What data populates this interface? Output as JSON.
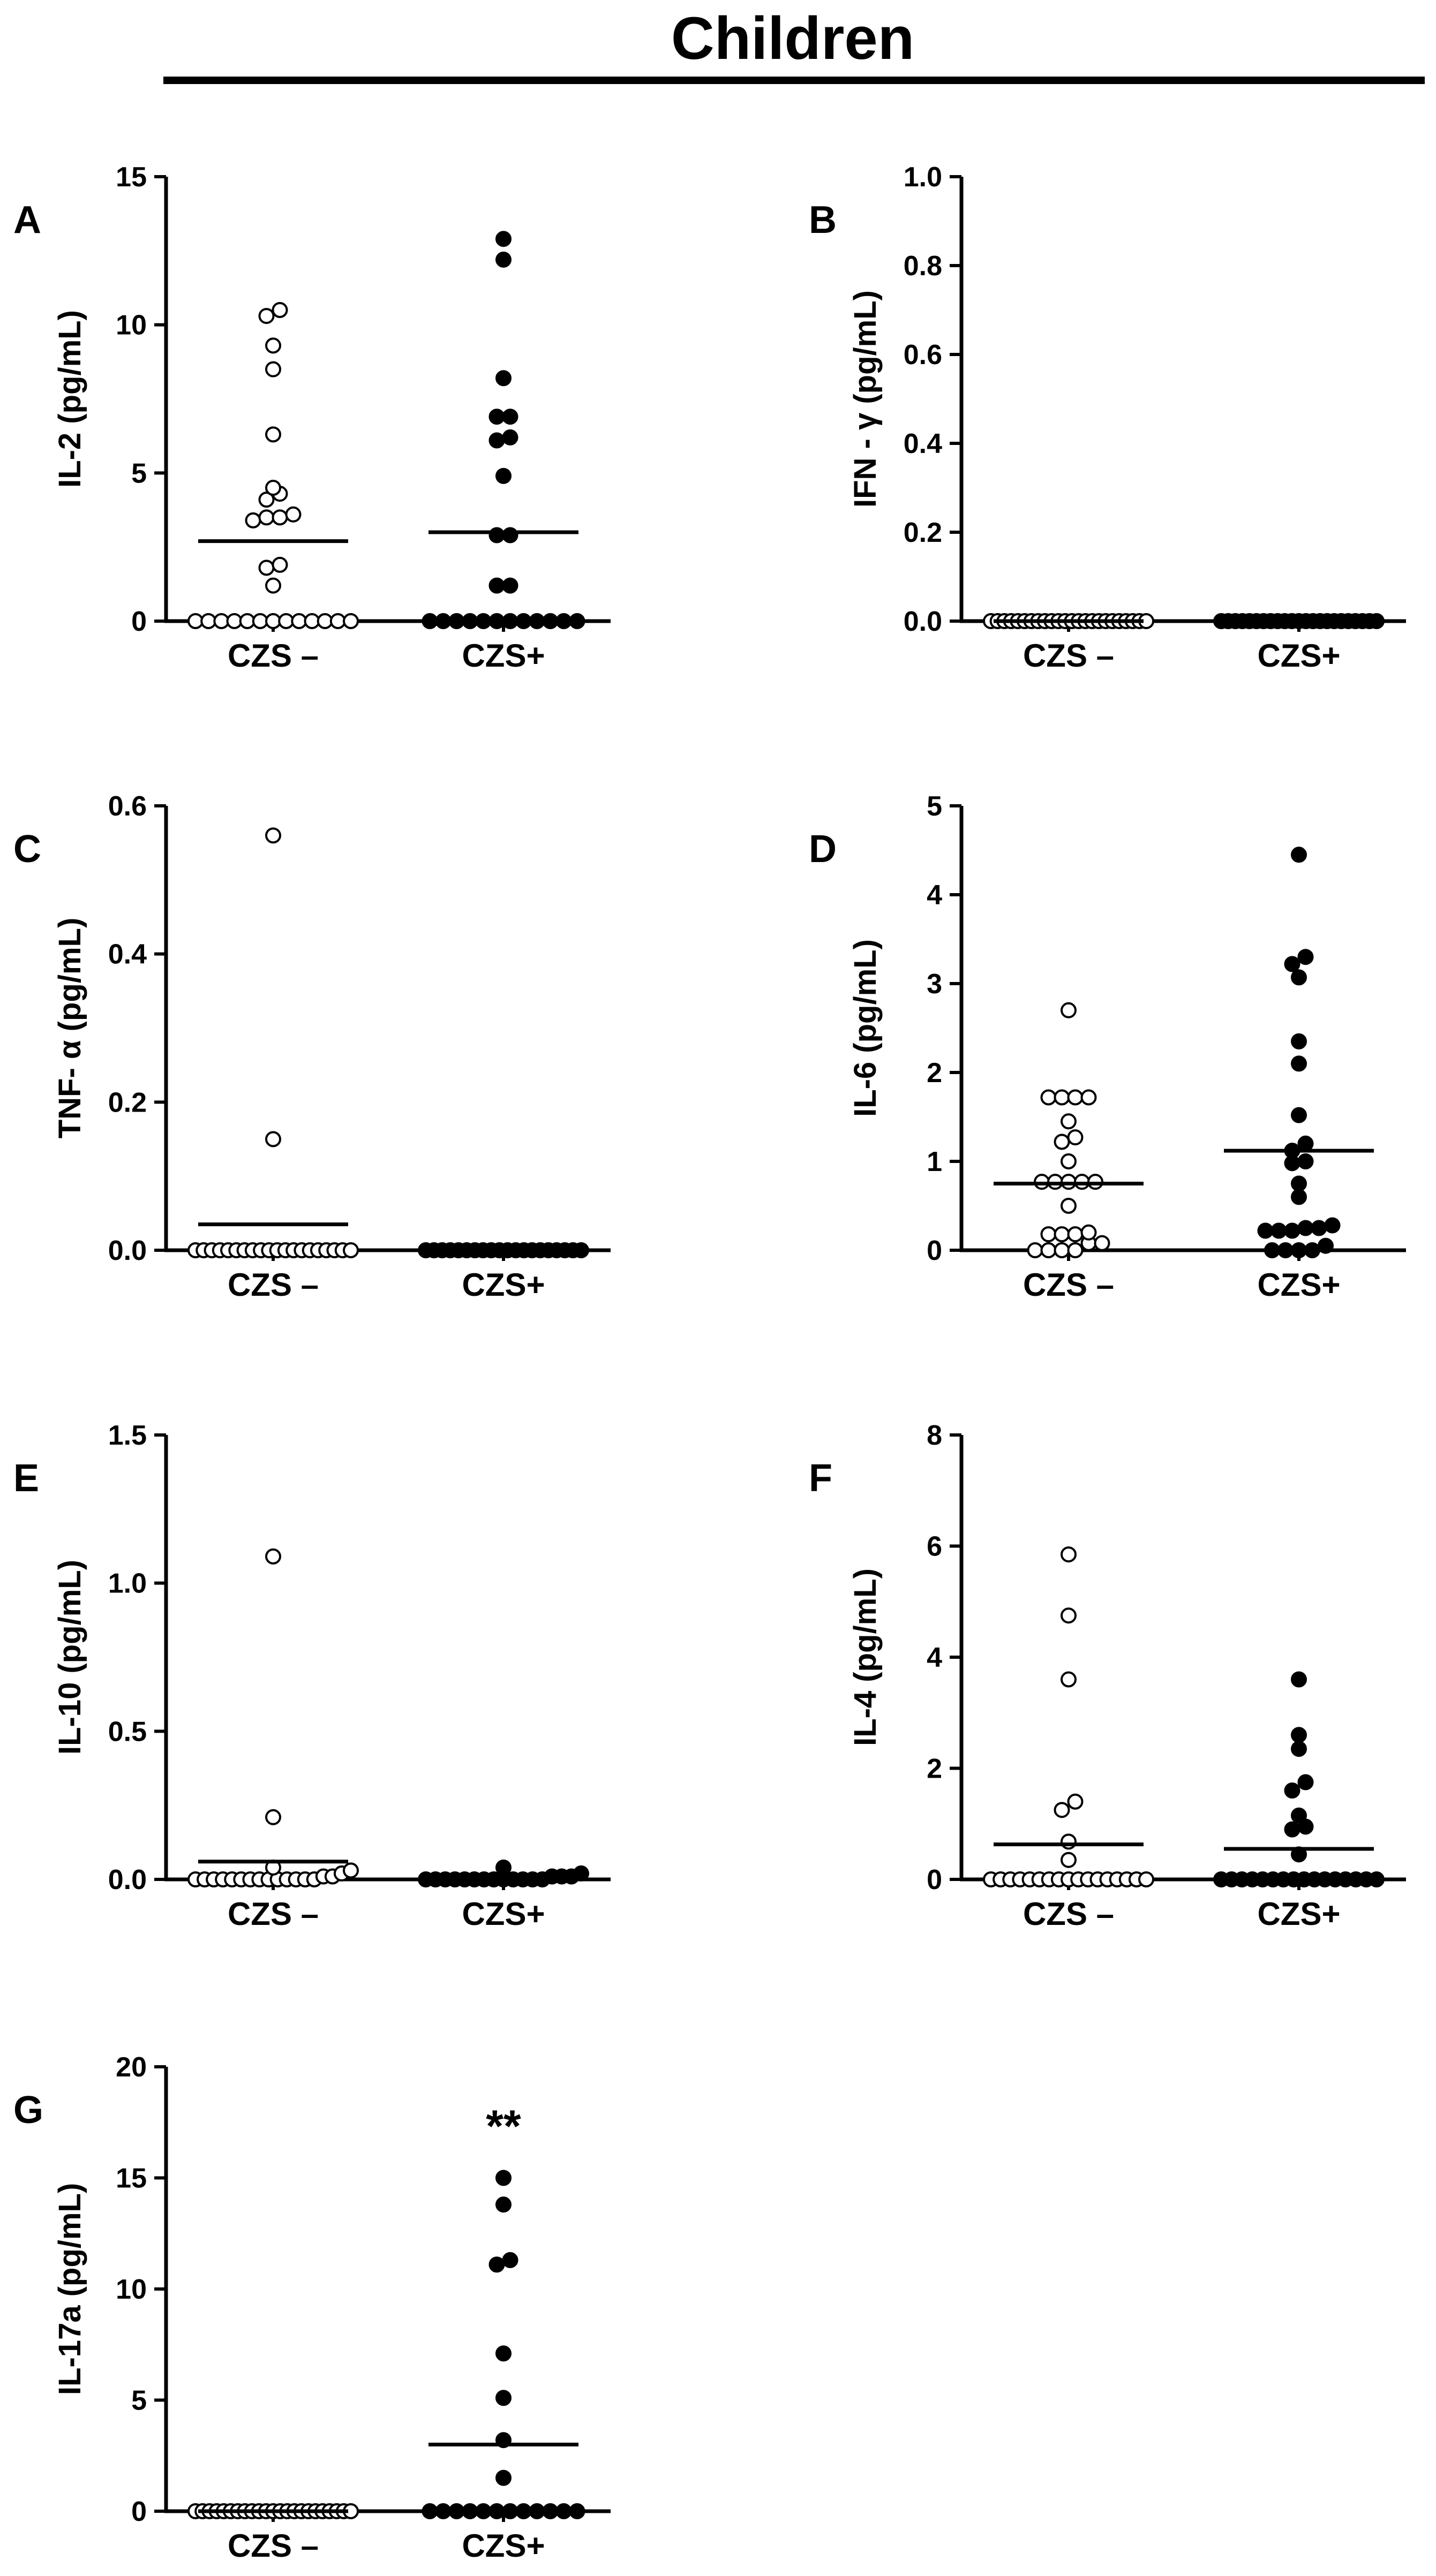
{
  "figure": {
    "title": "Children"
  },
  "chart_data": [
    {
      "panel": "A",
      "type": "scatter",
      "ylabel": "IL-2 (pg/mL)",
      "categories": [
        "CZS –",
        "CZS+"
      ],
      "ylim": [
        0,
        15
      ],
      "yticks": [
        0,
        5,
        10,
        15
      ],
      "yticklabels": [
        "0",
        "5",
        "10",
        "15"
      ],
      "series": [
        {
          "name": "CZS –",
          "marker": "open",
          "mean": 2.7,
          "values": [
            10.5,
            10.3,
            9.3,
            8.5,
            6.3,
            4.5,
            4.3,
            4.1,
            3.6,
            3.5,
            3.5,
            3.4,
            1.9,
            1.8,
            1.2,
            0,
            0,
            0,
            0,
            0,
            0,
            0,
            0,
            0,
            0,
            0,
            0,
            0
          ]
        },
        {
          "name": "CZS+",
          "marker": "filled",
          "mean": 3.0,
          "values": [
            12.9,
            12.2,
            8.2,
            6.9,
            6.9,
            6.2,
            6.1,
            4.9,
            2.9,
            2.9,
            1.2,
            1.2,
            0,
            0,
            0,
            0,
            0,
            0,
            0,
            0,
            0,
            0,
            0,
            0
          ]
        }
      ]
    },
    {
      "panel": "B",
      "type": "scatter",
      "ylabel": "IFN - γ (pg/mL)",
      "categories": [
        "CZS –",
        "CZS+"
      ],
      "ylim": [
        0,
        1.0
      ],
      "yticks": [
        0,
        0.2,
        0.4,
        0.6,
        0.8,
        1.0
      ],
      "yticklabels": [
        "0.0",
        "0.2",
        "0.4",
        "0.6",
        "0.8",
        "1.0"
      ],
      "series": [
        {
          "name": "CZS –",
          "marker": "open",
          "mean": 0.0,
          "values": [
            0,
            0,
            0,
            0,
            0,
            0,
            0,
            0,
            0,
            0,
            0,
            0,
            0,
            0,
            0,
            0,
            0,
            0,
            0,
            0,
            0,
            0,
            0,
            0
          ]
        },
        {
          "name": "CZS+",
          "marker": "filled",
          "mean": 0.0,
          "values": [
            0,
            0,
            0,
            0,
            0,
            0,
            0,
            0,
            0,
            0,
            0,
            0,
            0,
            0,
            0,
            0,
            0,
            0,
            0,
            0,
            0,
            0,
            0
          ]
        }
      ]
    },
    {
      "panel": "C",
      "type": "scatter",
      "ylabel": "TNF- α (pg/mL)",
      "categories": [
        "CZS –",
        "CZS+"
      ],
      "ylim": [
        0,
        0.6
      ],
      "yticks": [
        0,
        0.2,
        0.4,
        0.6
      ],
      "yticklabels": [
        "0.0",
        "0.2",
        "0.4",
        "0.6"
      ],
      "series": [
        {
          "name": "CZS –",
          "marker": "open",
          "mean": 0.035,
          "values": [
            0.56,
            0.15,
            0,
            0,
            0,
            0,
            0,
            0,
            0,
            0,
            0,
            0,
            0,
            0,
            0,
            0,
            0,
            0,
            0,
            0,
            0,
            0
          ]
        },
        {
          "name": "CZS+",
          "marker": "filled",
          "mean": 0.0,
          "values": [
            0,
            0,
            0,
            0,
            0,
            0,
            0,
            0,
            0,
            0,
            0,
            0,
            0,
            0,
            0,
            0,
            0,
            0,
            0,
            0
          ]
        }
      ]
    },
    {
      "panel": "D",
      "type": "scatter",
      "ylabel": "IL-6 (pg/mL)",
      "categories": [
        "CZS –",
        "CZS+"
      ],
      "ylim": [
        0,
        5
      ],
      "yticks": [
        0,
        1,
        2,
        3,
        4,
        5
      ],
      "yticklabels": [
        "0",
        "1",
        "2",
        "3",
        "4",
        "5"
      ],
      "series": [
        {
          "name": "CZS –",
          "marker": "open",
          "mean": 0.75,
          "values": [
            2.7,
            1.72,
            1.72,
            1.72,
            1.72,
            1.45,
            1.27,
            1.22,
            1.0,
            0.77,
            0.77,
            0.77,
            0.77,
            0.77,
            0.5,
            0.2,
            0.18,
            0.18,
            0.18,
            0.08,
            0.08,
            0,
            0,
            0,
            0
          ]
        },
        {
          "name": "CZS+",
          "marker": "filled",
          "mean": 1.12,
          "values": [
            4.45,
            3.3,
            3.22,
            3.07,
            2.35,
            2.1,
            1.52,
            1.2,
            1.12,
            1.0,
            0.98,
            0.75,
            0.6,
            0.28,
            0.25,
            0.25,
            0.22,
            0.22,
            0.22,
            0.05,
            0,
            0,
            0,
            0
          ]
        }
      ]
    },
    {
      "panel": "E",
      "type": "scatter",
      "ylabel": "IL-10 (pg/mL)",
      "categories": [
        "CZS –",
        "CZS+"
      ],
      "ylim": [
        0,
        1.5
      ],
      "yticks": [
        0,
        0.5,
        1.0,
        1.5
      ],
      "yticklabels": [
        "0.0",
        "0.5",
        "1.0",
        "1.5"
      ],
      "series": [
        {
          "name": "CZS –",
          "marker": "open",
          "mean": 0.06,
          "values": [
            1.09,
            0.21,
            0.04,
            0.03,
            0.02,
            0.01,
            0.01,
            0,
            0,
            0,
            0,
            0,
            0,
            0,
            0,
            0,
            0,
            0,
            0,
            0,
            0
          ]
        },
        {
          "name": "CZS+",
          "marker": "filled",
          "mean": 0.01,
          "values": [
            0.04,
            0.02,
            0.01,
            0.01,
            0.01,
            0,
            0,
            0,
            0,
            0,
            0,
            0,
            0,
            0,
            0,
            0,
            0,
            0
          ]
        }
      ]
    },
    {
      "panel": "F",
      "type": "scatter",
      "ylabel": "IL-4 (pg/mL)",
      "categories": [
        "CZS –",
        "CZS+"
      ],
      "ylim": [
        0,
        8
      ],
      "yticks": [
        0,
        2,
        4,
        6,
        8
      ],
      "yticklabels": [
        "0",
        "2",
        "4",
        "6",
        "8"
      ],
      "series": [
        {
          "name": "CZS –",
          "marker": "open",
          "mean": 0.63,
          "values": [
            5.85,
            4.75,
            3.6,
            1.4,
            1.25,
            0.68,
            0.35,
            0,
            0,
            0,
            0,
            0,
            0,
            0,
            0,
            0,
            0,
            0,
            0,
            0,
            0,
            0,
            0,
            0
          ]
        },
        {
          "name": "CZS+",
          "marker": "filled",
          "mean": 0.55,
          "values": [
            3.6,
            2.6,
            2.35,
            1.75,
            1.6,
            1.15,
            0.95,
            0.9,
            0.45,
            0,
            0,
            0,
            0,
            0,
            0,
            0,
            0,
            0,
            0,
            0,
            0,
            0,
            0,
            0,
            0
          ]
        }
      ]
    },
    {
      "panel": "G",
      "type": "scatter",
      "ylabel": "IL-17a (pg/mL)",
      "categories": [
        "CZS –",
        "CZS+"
      ],
      "ylim": [
        0,
        20
      ],
      "yticks": [
        0,
        5,
        10,
        15,
        20
      ],
      "yticklabels": [
        "0",
        "5",
        "10",
        "15",
        "20"
      ],
      "annotation": {
        "text": "**",
        "category": 1,
        "y": 17.6
      },
      "series": [
        {
          "name": "CZS –",
          "marker": "open",
          "mean": 0.0,
          "values": [
            0,
            0,
            0,
            0,
            0,
            0,
            0,
            0,
            0,
            0,
            0,
            0,
            0,
            0,
            0,
            0,
            0,
            0,
            0,
            0,
            0,
            0,
            0
          ]
        },
        {
          "name": "CZS+",
          "marker": "filled",
          "mean": 3.0,
          "values": [
            15.0,
            13.8,
            11.3,
            11.1,
            7.1,
            5.1,
            3.2,
            1.5,
            0,
            0,
            0,
            0,
            0,
            0,
            0,
            0,
            0,
            0,
            0,
            0
          ]
        }
      ]
    }
  ]
}
